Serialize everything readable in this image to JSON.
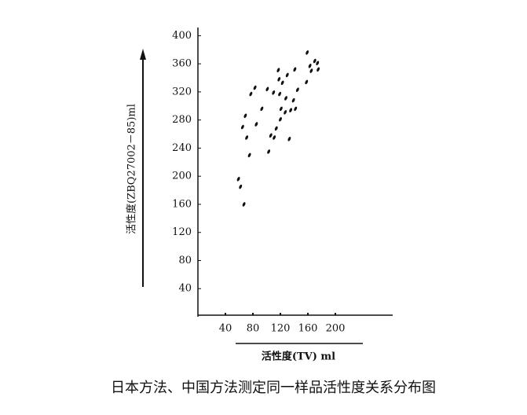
{
  "chart_data": {
    "type": "scatter",
    "title": "日本方法、中国方法测定同一样品活性度关系分布图",
    "x_label": "活性度(TV) ml",
    "y_label": "活性度(ZBQ27002－85)ml",
    "color": "#111111",
    "xlim": [
      0,
      283
    ],
    "ylim": [
      0,
      412
    ],
    "xticks": [
      40,
      80,
      120,
      160,
      200
    ],
    "yticks": [
      40,
      80,
      120,
      160,
      200,
      240,
      280,
      320,
      360,
      400
    ],
    "x": [
      59,
      62,
      67,
      65,
      69,
      71,
      75,
      77,
      83,
      85,
      93,
      101,
      103,
      106,
      110,
      114,
      117,
      119,
      121,
      123,
      127,
      128,
      130,
      133,
      135,
      139,
      141,
      142,
      145,
      158,
      159,
      163,
      165,
      170,
      174,
      175,
      118,
      111,
      120
    ],
    "values": [
      196,
      185,
      160,
      270,
      286,
      255,
      230,
      317,
      326,
      274,
      296,
      324,
      235,
      258,
      319,
      268,
      351,
      317,
      296,
      333,
      291,
      311,
      344,
      253,
      294,
      308,
      352,
      296,
      323,
      334,
      376,
      357,
      350,
      364,
      361,
      352,
      338,
      255,
      281
    ]
  }
}
